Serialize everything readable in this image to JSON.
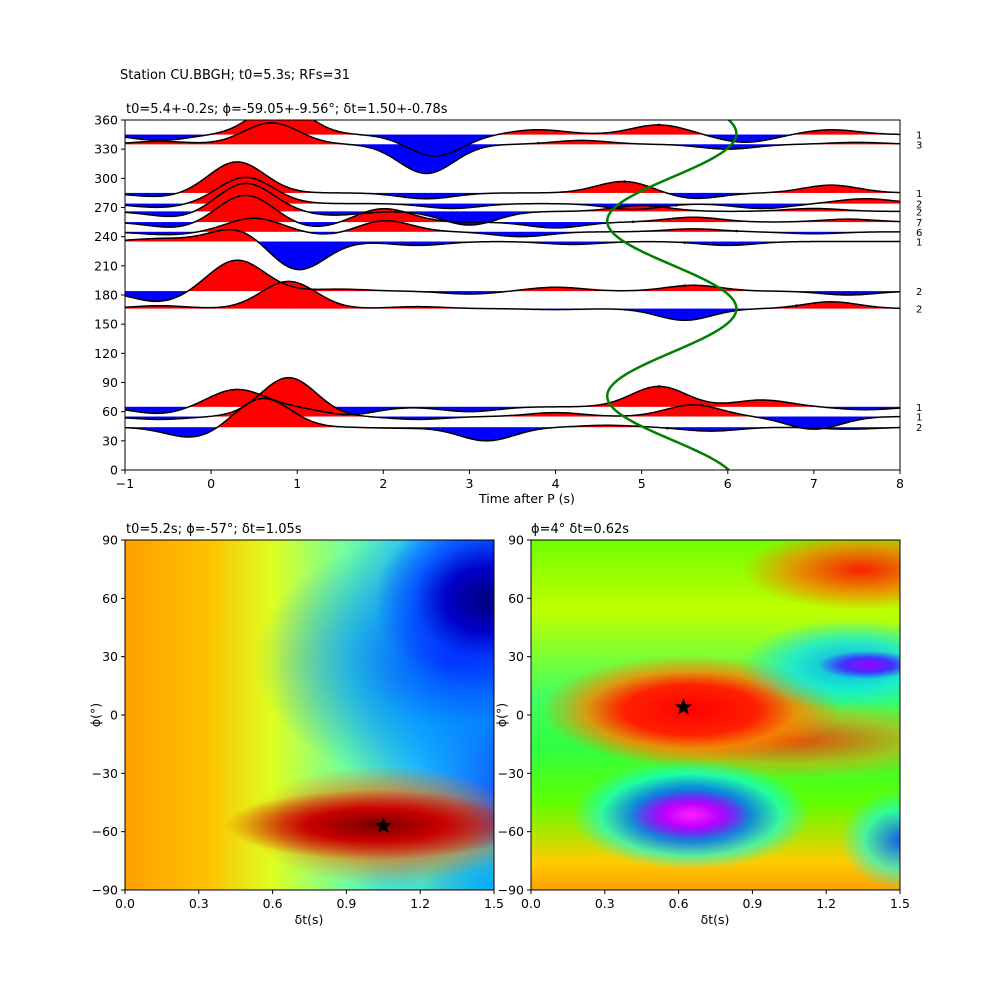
{
  "suptitle": "Station CU.BBGH; t0=5.3s; RFs=31",
  "chart_data": [
    {
      "type": "line",
      "title": "t0=5.4+-0.2s; $\\phi$=-59.05+-9.56°; $\\delta$t=1.50+-0.78s",
      "title_display": "t0=5.4+-0.2s; ϕ=-59.05+-9.56°; δt=1.50+-0.78s",
      "xlabel": "Time after P (s)",
      "ylabel": "",
      "xlim": [
        -1,
        8
      ],
      "ylim": [
        0,
        360
      ],
      "xticks": [
        -1,
        0,
        1,
        2,
        3,
        4,
        5,
        6,
        7,
        8
      ],
      "yticks": [
        0,
        30,
        60,
        90,
        120,
        150,
        180,
        210,
        240,
        270,
        300,
        330,
        360
      ],
      "fill_positive_color": "#ff0000",
      "fill_negative_color": "#0000ff",
      "model_curve_color": "#007f00",
      "traces": [
        {
          "baz": 345,
          "count_label": "1",
          "pulses": [
            [
              -0.6,
              -6
            ],
            [
              0.8,
              32
            ],
            [
              2.6,
              -22
            ],
            [
              3.8,
              5
            ],
            [
              5.2,
              10
            ],
            [
              6.2,
              -8
            ],
            [
              7.2,
              5
            ]
          ],
          "pick_x": 5.2
        },
        {
          "baz": 335,
          "count_label": "3",
          "pulses": [
            [
              -0.6,
              3
            ],
            [
              0.7,
              22
            ],
            [
              2.5,
              -30
            ],
            [
              4.3,
              4
            ],
            [
              6.0,
              -5
            ],
            [
              7.5,
              2
            ]
          ],
          "pick_x": 3.8
        },
        {
          "baz": 285,
          "count_label": "1",
          "pulses": [
            [
              -0.6,
              -4
            ],
            [
              0.3,
              32
            ],
            [
              2.5,
              -6
            ],
            [
              4.8,
              12
            ],
            [
              5.6,
              -6
            ],
            [
              7.2,
              8
            ]
          ],
          "pick_x": 4.8
        },
        {
          "baz": 274,
          "count_label": "2",
          "pulses": [
            [
              -0.6,
              -4
            ],
            [
              0.4,
              27
            ],
            [
              2.8,
              -5
            ],
            [
              4.9,
              -6
            ],
            [
              6.4,
              -5
            ],
            [
              7.6,
              5
            ]
          ],
          "pick_x": 5.4
        },
        {
          "baz": 266,
          "count_label": "2",
          "pulses": [
            [
              -0.4,
              -6
            ],
            [
              0.4,
              29
            ],
            [
              1.4,
              -4
            ],
            [
              3.0,
              -14
            ],
            [
              5.0,
              6
            ],
            [
              7.0,
              3
            ]
          ],
          "pick_x": 5.1
        },
        {
          "baz": 255,
          "count_label": "7",
          "pulses": [
            [
              -0.4,
              -6
            ],
            [
              0.4,
              28
            ],
            [
              1.2,
              -6
            ],
            [
              2.0,
              14
            ],
            [
              4.0,
              -6
            ],
            [
              5.6,
              5
            ],
            [
              7.4,
              3
            ]
          ],
          "pick_x": 4.9
        },
        {
          "baz": 245,
          "count_label": "6",
          "pulses": [
            [
              -0.5,
              -3
            ],
            [
              0.5,
              14
            ],
            [
              1.4,
              -4
            ],
            [
              2.0,
              12
            ],
            [
              3.6,
              -5
            ],
            [
              5.6,
              3
            ],
            [
              7.0,
              -2
            ]
          ],
          "pick_x": 6.1
        },
        {
          "baz": 235,
          "count_label": "1",
          "pulses": [
            [
              -0.6,
              3
            ],
            [
              0.3,
              14
            ],
            [
              1.0,
              -30
            ],
            [
              2.4,
              -4
            ],
            [
              4.2,
              -3
            ],
            [
              6.0,
              -4
            ]
          ],
          "pick_x": 5.5
        },
        {
          "baz": 184,
          "count_label": "2",
          "pulses": [
            [
              -0.6,
              -11
            ],
            [
              0.3,
              32
            ],
            [
              1.5,
              2
            ],
            [
              3.0,
              -3
            ],
            [
              4.0,
              4
            ],
            [
              5.6,
              6
            ],
            [
              7.4,
              -4
            ]
          ],
          "pick_x": 5.5
        },
        {
          "baz": 166,
          "count_label": "2",
          "pulses": [
            [
              -0.6,
              3
            ],
            [
              0.9,
              28
            ],
            [
              2.4,
              2
            ],
            [
              4.0,
              -1
            ],
            [
              5.5,
              -12
            ],
            [
              7.2,
              7
            ]
          ],
          "pick_x": 6.8
        },
        {
          "baz": 65,
          "count_label": "1",
          "pulses": [
            [
              -0.6,
              -7
            ],
            [
              0.3,
              18
            ],
            [
              1.6,
              -8
            ],
            [
              3.0,
              -5
            ],
            [
              5.2,
              21
            ],
            [
              6.4,
              7
            ],
            [
              7.6,
              -3
            ]
          ],
          "pick_x": 5.2
        },
        {
          "baz": 55,
          "count_label": "1",
          "pulses": [
            [
              -0.6,
              -3
            ],
            [
              0.9,
              40
            ],
            [
              2.4,
              -3
            ],
            [
              4.0,
              4
            ],
            [
              5.6,
              12
            ],
            [
              7.0,
              -13
            ]
          ],
          "pick_x": 5.7
        },
        {
          "baz": 44,
          "count_label": "2",
          "pulses": [
            [
              -0.2,
              -11
            ],
            [
              0.6,
              30
            ],
            [
              2.2,
              -1
            ],
            [
              3.2,
              -14
            ],
            [
              4.6,
              2
            ],
            [
              5.8,
              -4
            ],
            [
              7.4,
              -2
            ]
          ],
          "pick_x": 5.3
        }
      ],
      "model_curve": {
        "description_param": {
          "t0": 5.35,
          "amplitude": 0.75,
          "phase_deg": -59
        }
      }
    },
    {
      "type": "heatmap",
      "title": "t0=5.2s; $\\phi$=-57°; $\\delta$t=1.05s",
      "title_display": "t0=5.2s; ϕ=-57°; δt=1.05s",
      "xlabel": "δt(s)",
      "ylabel": "ϕ(°)",
      "xlim": [
        0.0,
        1.5
      ],
      "ylim": [
        -90,
        90
      ],
      "xticks": [
        "0.0",
        "0.3",
        "0.6",
        "0.9",
        "1.2",
        "1.5"
      ],
      "yticks": [
        "−90",
        "−60",
        "−30",
        "0",
        "30",
        "60",
        "90"
      ],
      "colormap": "jet",
      "best_fit": {
        "dt": 1.05,
        "phi": -57
      }
    },
    {
      "type": "heatmap",
      "title": "$\\phi$=4° $\\delta$t=0.62s",
      "title_display": "ϕ=4° δt=0.62s",
      "xlabel": "δt(s)",
      "ylabel": "ϕ(°)",
      "xlim": [
        0.0,
        1.5
      ],
      "ylim": [
        -90,
        90
      ],
      "xticks": [
        "0.0",
        "0.3",
        "0.6",
        "0.9",
        "1.2",
        "1.5"
      ],
      "yticks": [
        "−90",
        "−60",
        "−30",
        "0",
        "30",
        "60",
        "90"
      ],
      "colormap": "gist_rainbow",
      "best_fit": {
        "dt": 0.62,
        "phi": 4
      }
    }
  ]
}
